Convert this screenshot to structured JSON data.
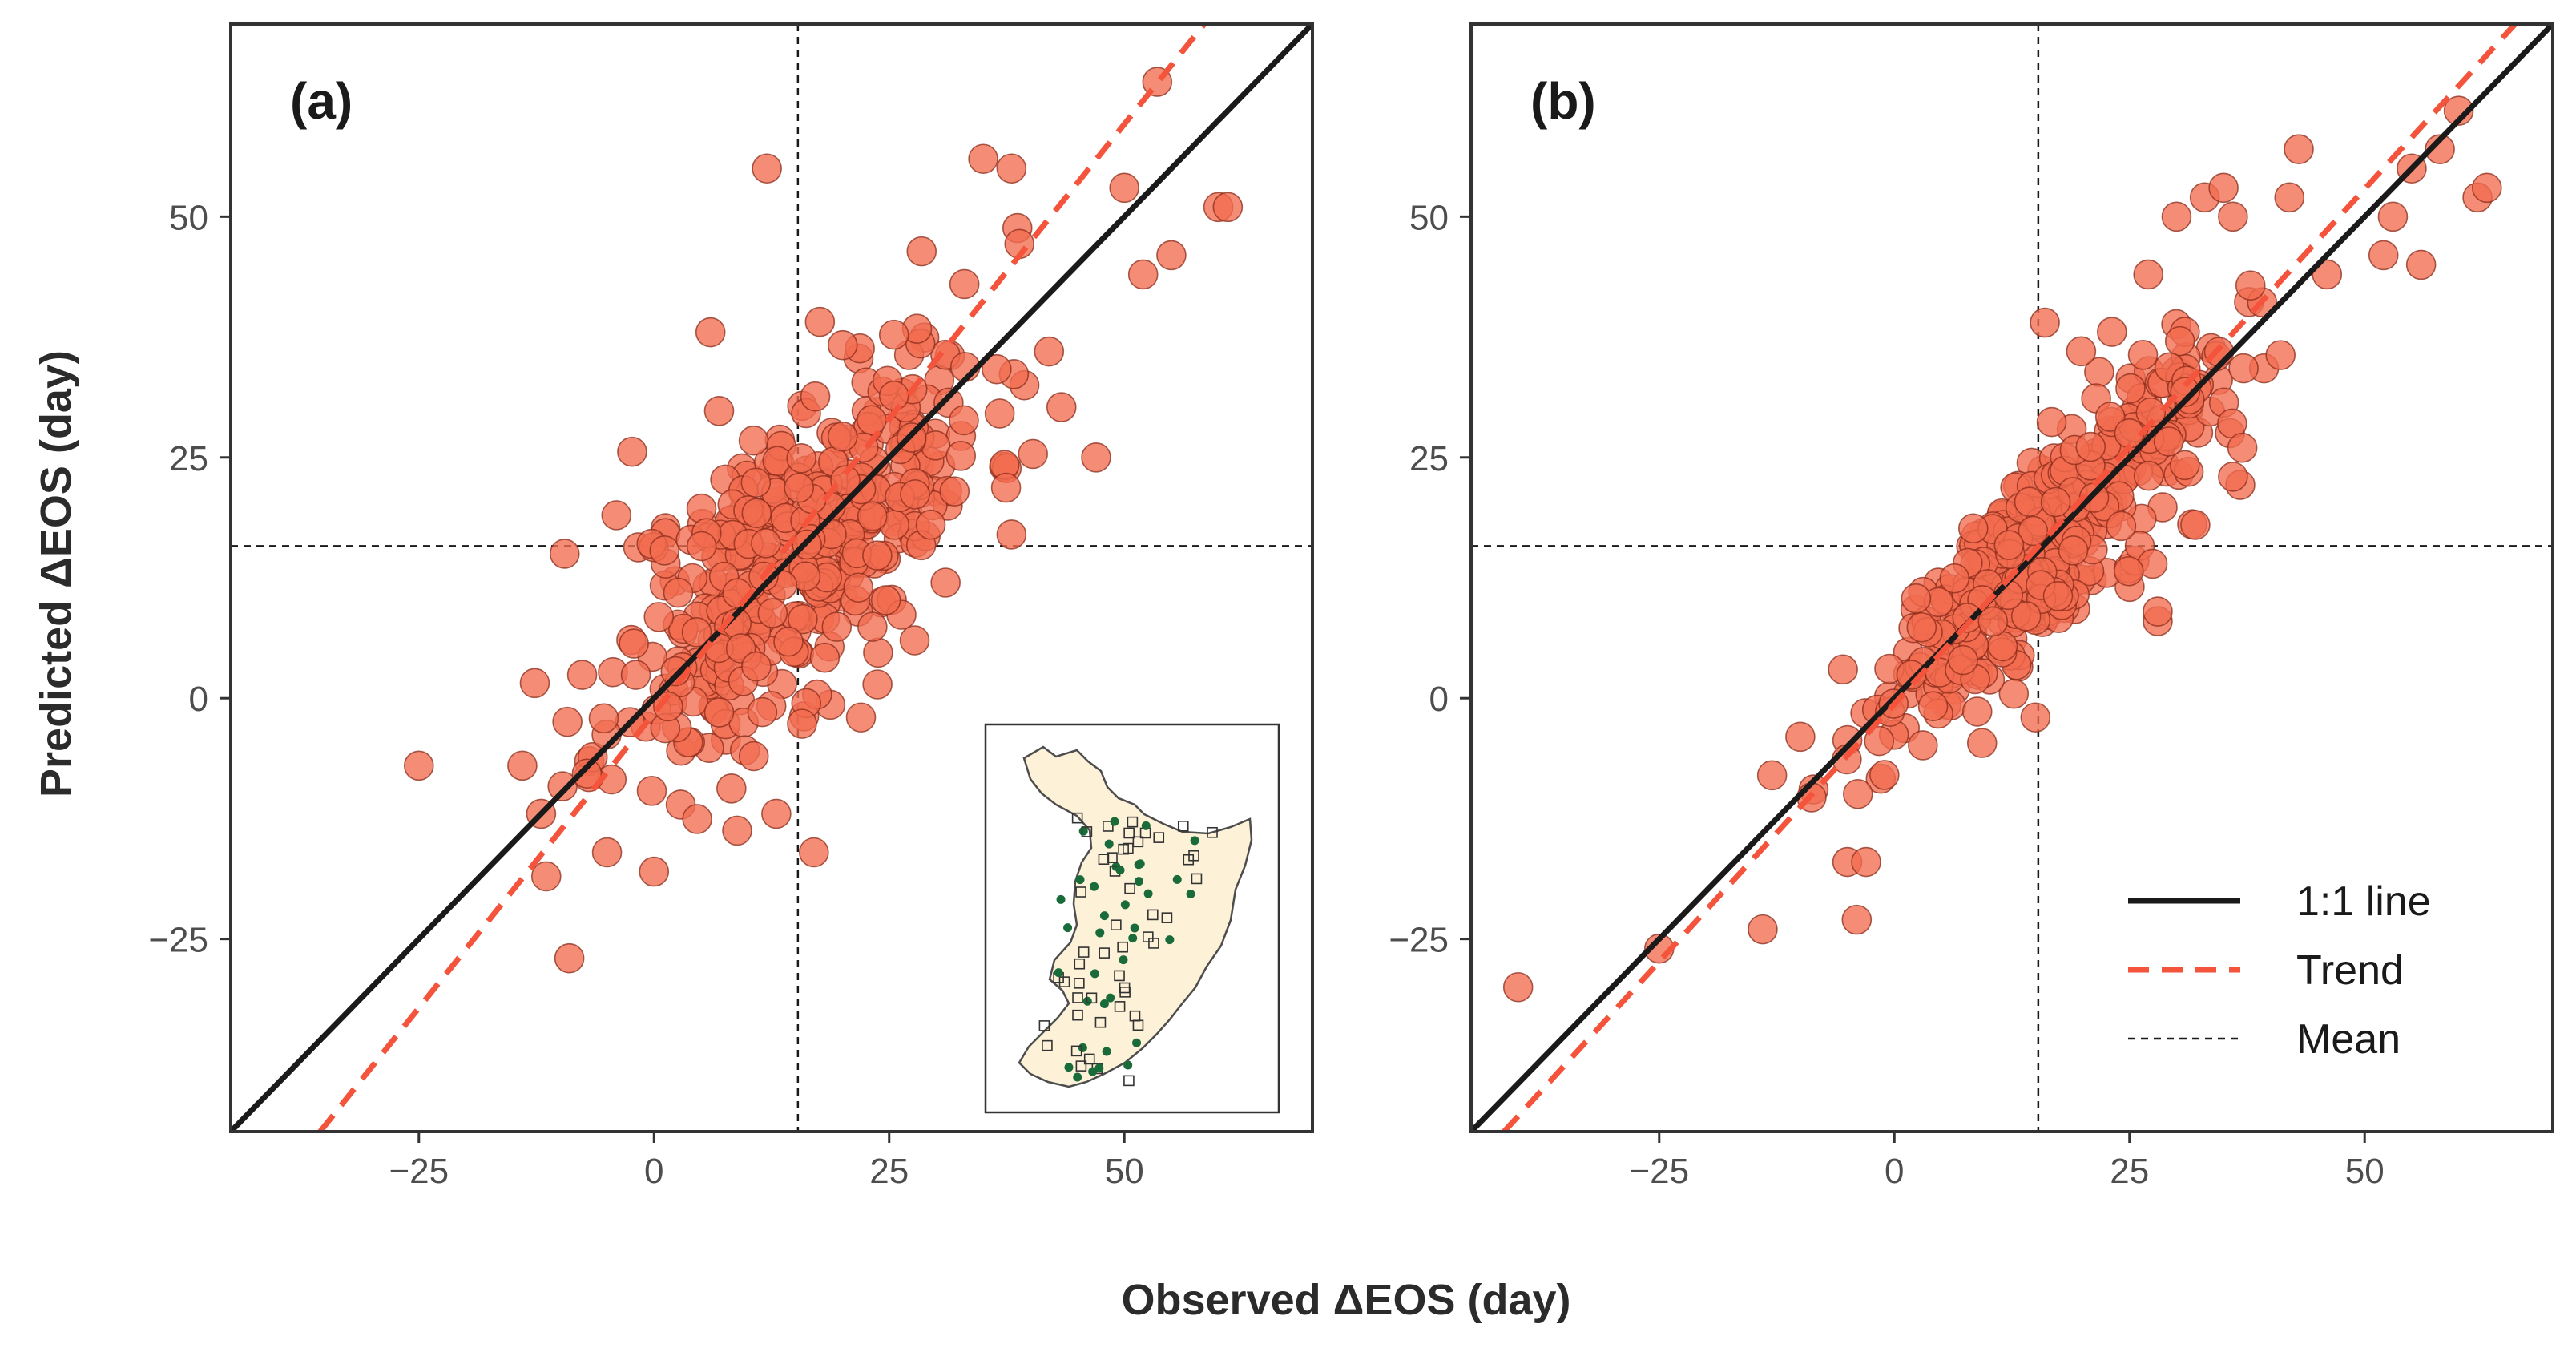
{
  "figure": {
    "x_title": "Observed ΔEOS (day)",
    "y_title": "Predicted ΔEOS (day)"
  },
  "chart_data": [
    {
      "type": "scatter",
      "panel_label": "(a)",
      "xlim": [
        -45,
        70
      ],
      "ylim": [
        -45,
        70
      ],
      "x_ticks": [
        -25,
        0,
        25,
        50
      ],
      "x_tick_labels": [
        "−25",
        "0",
        "25",
        "50"
      ],
      "y_ticks": [
        -25,
        0,
        25,
        50
      ],
      "y_tick_labels": [
        "−25",
        "0",
        "25",
        "50"
      ],
      "mean_x": 15.3,
      "mean_y": 15.8,
      "one_to_one": [
        [
          -45,
          -45
        ],
        [
          70,
          70
        ]
      ],
      "trend": [
        [
          -35.5,
          -45
        ],
        [
          58.5,
          70
        ]
      ],
      "point_color": "#f26b4f",
      "highlight_points": [
        {
          "x": -25,
          "y": -7
        },
        {
          "x": -14,
          "y": -7
        },
        {
          "x": -12,
          "y": -12
        },
        {
          "x": -9.5,
          "y": 15
        },
        {
          "x": -9,
          "y": -27
        },
        {
          "x": -4,
          "y": 19
        },
        {
          "x": 12,
          "y": 55
        },
        {
          "x": 35,
          "y": 56
        },
        {
          "x": 38,
          "y": 55
        },
        {
          "x": 50,
          "y": 53
        },
        {
          "x": 53.5,
          "y": 64
        },
        {
          "x": 52,
          "y": 44
        },
        {
          "x": 55,
          "y": 46
        },
        {
          "x": 60,
          "y": 51
        },
        {
          "x": 61,
          "y": 51
        },
        {
          "x": 38,
          "y": 17
        },
        {
          "x": 13,
          "y": -12
        },
        {
          "x": 17,
          "y": -16
        },
        {
          "x": 22,
          "y": -2
        },
        {
          "x": 31,
          "y": 12
        },
        {
          "x": 47,
          "y": 25
        },
        {
          "x": 6,
          "y": 38
        },
        {
          "x": 0,
          "y": -18
        },
        {
          "x": -5,
          "y": -16
        },
        {
          "x": 33,
          "y": 43
        },
        {
          "x": 42,
          "y": 36
        }
      ],
      "cloud": {
        "count": 420,
        "center_x": 15.5,
        "center_y": 15.5,
        "sd_x": 10,
        "sd_y": 11,
        "corr": 0.68,
        "seed": 11
      },
      "inset_map": {
        "land_color": "#fdf1d8",
        "site_color": "#1a6b3a"
      }
    },
    {
      "type": "scatter",
      "panel_label": "(b)",
      "xlim": [
        -45,
        70
      ],
      "ylim": [
        -45,
        70
      ],
      "x_ticks": [
        -25,
        0,
        25,
        50
      ],
      "x_tick_labels": [
        "−25",
        "0",
        "25",
        "50"
      ],
      "y_ticks": [
        -25,
        0,
        25,
        50
      ],
      "y_tick_labels": [
        "−25",
        "0",
        "25",
        "50"
      ],
      "mean_x": 15.3,
      "mean_y": 15.8,
      "one_to_one": [
        [
          -45,
          -45
        ],
        [
          70,
          70
        ]
      ],
      "trend": [
        [
          -41.5,
          -45
        ],
        [
          66,
          70
        ]
      ],
      "point_color": "#f26b4f",
      "highlight_points": [
        {
          "x": -40,
          "y": -30
        },
        {
          "x": -25,
          "y": -26
        },
        {
          "x": -14,
          "y": -24
        },
        {
          "x": -4,
          "y": -23
        },
        {
          "x": -5,
          "y": -17
        },
        {
          "x": -3,
          "y": -17
        },
        {
          "x": -13,
          "y": -8
        },
        {
          "x": -10,
          "y": -4
        },
        {
          "x": 53,
          "y": 50
        },
        {
          "x": 55,
          "y": 55
        },
        {
          "x": 56,
          "y": 45
        },
        {
          "x": 60,
          "y": 61
        },
        {
          "x": 62,
          "y": 52
        },
        {
          "x": 63,
          "y": 53
        },
        {
          "x": 58,
          "y": 57
        },
        {
          "x": 52,
          "y": 46
        },
        {
          "x": 46,
          "y": 44
        },
        {
          "x": 43,
          "y": 57
        },
        {
          "x": 42,
          "y": 52
        },
        {
          "x": 33,
          "y": 52
        },
        {
          "x": 36,
          "y": 50
        },
        {
          "x": 30,
          "y": 50
        },
        {
          "x": 35,
          "y": 53
        },
        {
          "x": 37,
          "y": 26
        },
        {
          "x": 36,
          "y": 23
        },
        {
          "x": 32,
          "y": 18
        },
        {
          "x": 28,
          "y": 8
        },
        {
          "x": 27,
          "y": 44
        },
        {
          "x": 16,
          "y": 39
        },
        {
          "x": 15,
          "y": -2
        },
        {
          "x": 28,
          "y": 9
        }
      ],
      "cloud": {
        "count": 440,
        "center_x": 15.5,
        "center_y": 15.5,
        "sd_x": 9,
        "sd_y": 9.5,
        "corr": 0.86,
        "seed": 29
      }
    }
  ],
  "legend": {
    "items": [
      {
        "label": "1:1 line",
        "style": "solid",
        "color": "#1a1a1a"
      },
      {
        "label": "Trend",
        "style": "dashed",
        "color": "#f4533c"
      },
      {
        "label": "Mean",
        "style": "dotted",
        "color": "#1a1a1a"
      }
    ]
  }
}
